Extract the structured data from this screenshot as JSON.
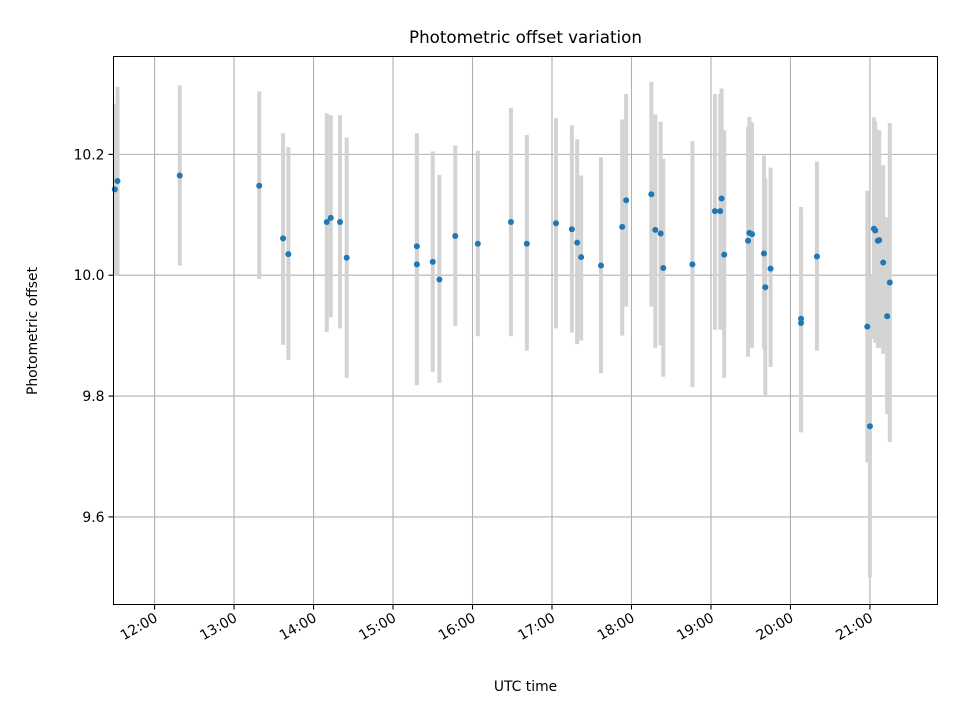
{
  "chart_data": {
    "type": "scatter",
    "title": "Photometric offset variation",
    "xlabel": "UTC time",
    "ylabel": "Photometric offset",
    "xlim": [
      "11:29",
      "21:51"
    ],
    "ylim": [
      9.455,
      10.362
    ],
    "x_ticks": [
      "12:00",
      "13:00",
      "14:00",
      "15:00",
      "16:00",
      "17:00",
      "18:00",
      "19:00",
      "20:00",
      "21:00"
    ],
    "y_ticks": [
      "9.6",
      "9.8",
      "10.0",
      "10.2"
    ],
    "grid": true,
    "colors": {
      "points": "#1f77b4",
      "errorbars": "#d3d3d3",
      "grid": "#b0b0b0"
    },
    "series": [
      {
        "x": [
          "11:30",
          "11:32",
          "12:19",
          "13:19",
          "13:37",
          "13:41",
          "14:10",
          "14:13",
          "14:20",
          "14:25",
          "15:18",
          "15:18",
          "15:30",
          "15:35",
          "15:47",
          "16:04",
          "16:29",
          "16:41",
          "17:03",
          "17:15",
          "17:19",
          "17:22",
          "17:37",
          "17:53",
          "17:56",
          "18:15",
          "18:18",
          "18:22",
          "18:24",
          "18:46",
          "19:03",
          "19:07",
          "19:08",
          "19:10",
          "19:28",
          "19:29",
          "19:31",
          "19:40",
          "19:41",
          "19:45",
          "20:08",
          "20:08",
          "20:20",
          "20:58",
          "21:00",
          "21:03",
          "21:04",
          "21:06",
          "21:07",
          "21:10",
          "21:13",
          "21:15"
        ],
        "y": [
          10.142,
          10.156,
          10.165,
          10.148,
          10.061,
          10.035,
          10.088,
          10.095,
          10.088,
          10.029,
          10.048,
          10.018,
          10.022,
          9.993,
          10.065,
          10.052,
          10.088,
          10.052,
          10.086,
          10.076,
          10.054,
          10.03,
          10.016,
          10.08,
          10.124,
          10.134,
          10.075,
          10.069,
          10.012,
          10.018,
          10.106,
          10.106,
          10.127,
          10.034,
          10.057,
          10.07,
          10.068,
          10.036,
          9.98,
          10.011,
          9.928,
          9.921,
          10.031,
          9.915,
          9.75,
          10.077,
          10.074,
          10.057,
          10.058,
          10.021,
          9.932,
          9.988
        ],
        "yerr_low": [
          10.0,
          10.0,
          10.016,
          9.994,
          9.885,
          9.86,
          9.906,
          9.93,
          9.912,
          9.83,
          9.818,
          9.818,
          9.84,
          9.822,
          9.916,
          9.899,
          9.899,
          9.875,
          9.912,
          9.905,
          9.886,
          9.892,
          9.838,
          9.9,
          9.948,
          9.948,
          9.88,
          9.884,
          9.832,
          9.815,
          9.91,
          9.91,
          9.91,
          9.83,
          9.865,
          9.885,
          9.88,
          9.878,
          9.8,
          9.848,
          9.74,
          9.74,
          9.875,
          9.69,
          9.5,
          9.895,
          9.888,
          9.88,
          9.88,
          9.87,
          9.77,
          9.724
        ],
        "yerr_high": [
          10.284,
          10.312,
          10.314,
          10.304,
          10.235,
          10.212,
          10.268,
          10.265,
          10.265,
          10.228,
          10.235,
          10.235,
          10.205,
          10.166,
          10.215,
          10.206,
          10.277,
          10.232,
          10.26,
          10.248,
          10.225,
          10.165,
          10.195,
          10.258,
          10.3,
          10.32,
          10.266,
          10.254,
          10.193,
          10.222,
          10.3,
          10.3,
          10.309,
          10.24,
          10.246,
          10.262,
          10.253,
          10.198,
          10.16,
          10.178,
          10.113,
          10.105,
          10.188,
          10.14,
          10.0,
          10.261,
          10.254,
          10.24,
          10.24,
          10.182,
          10.096,
          10.252
        ]
      }
    ]
  }
}
